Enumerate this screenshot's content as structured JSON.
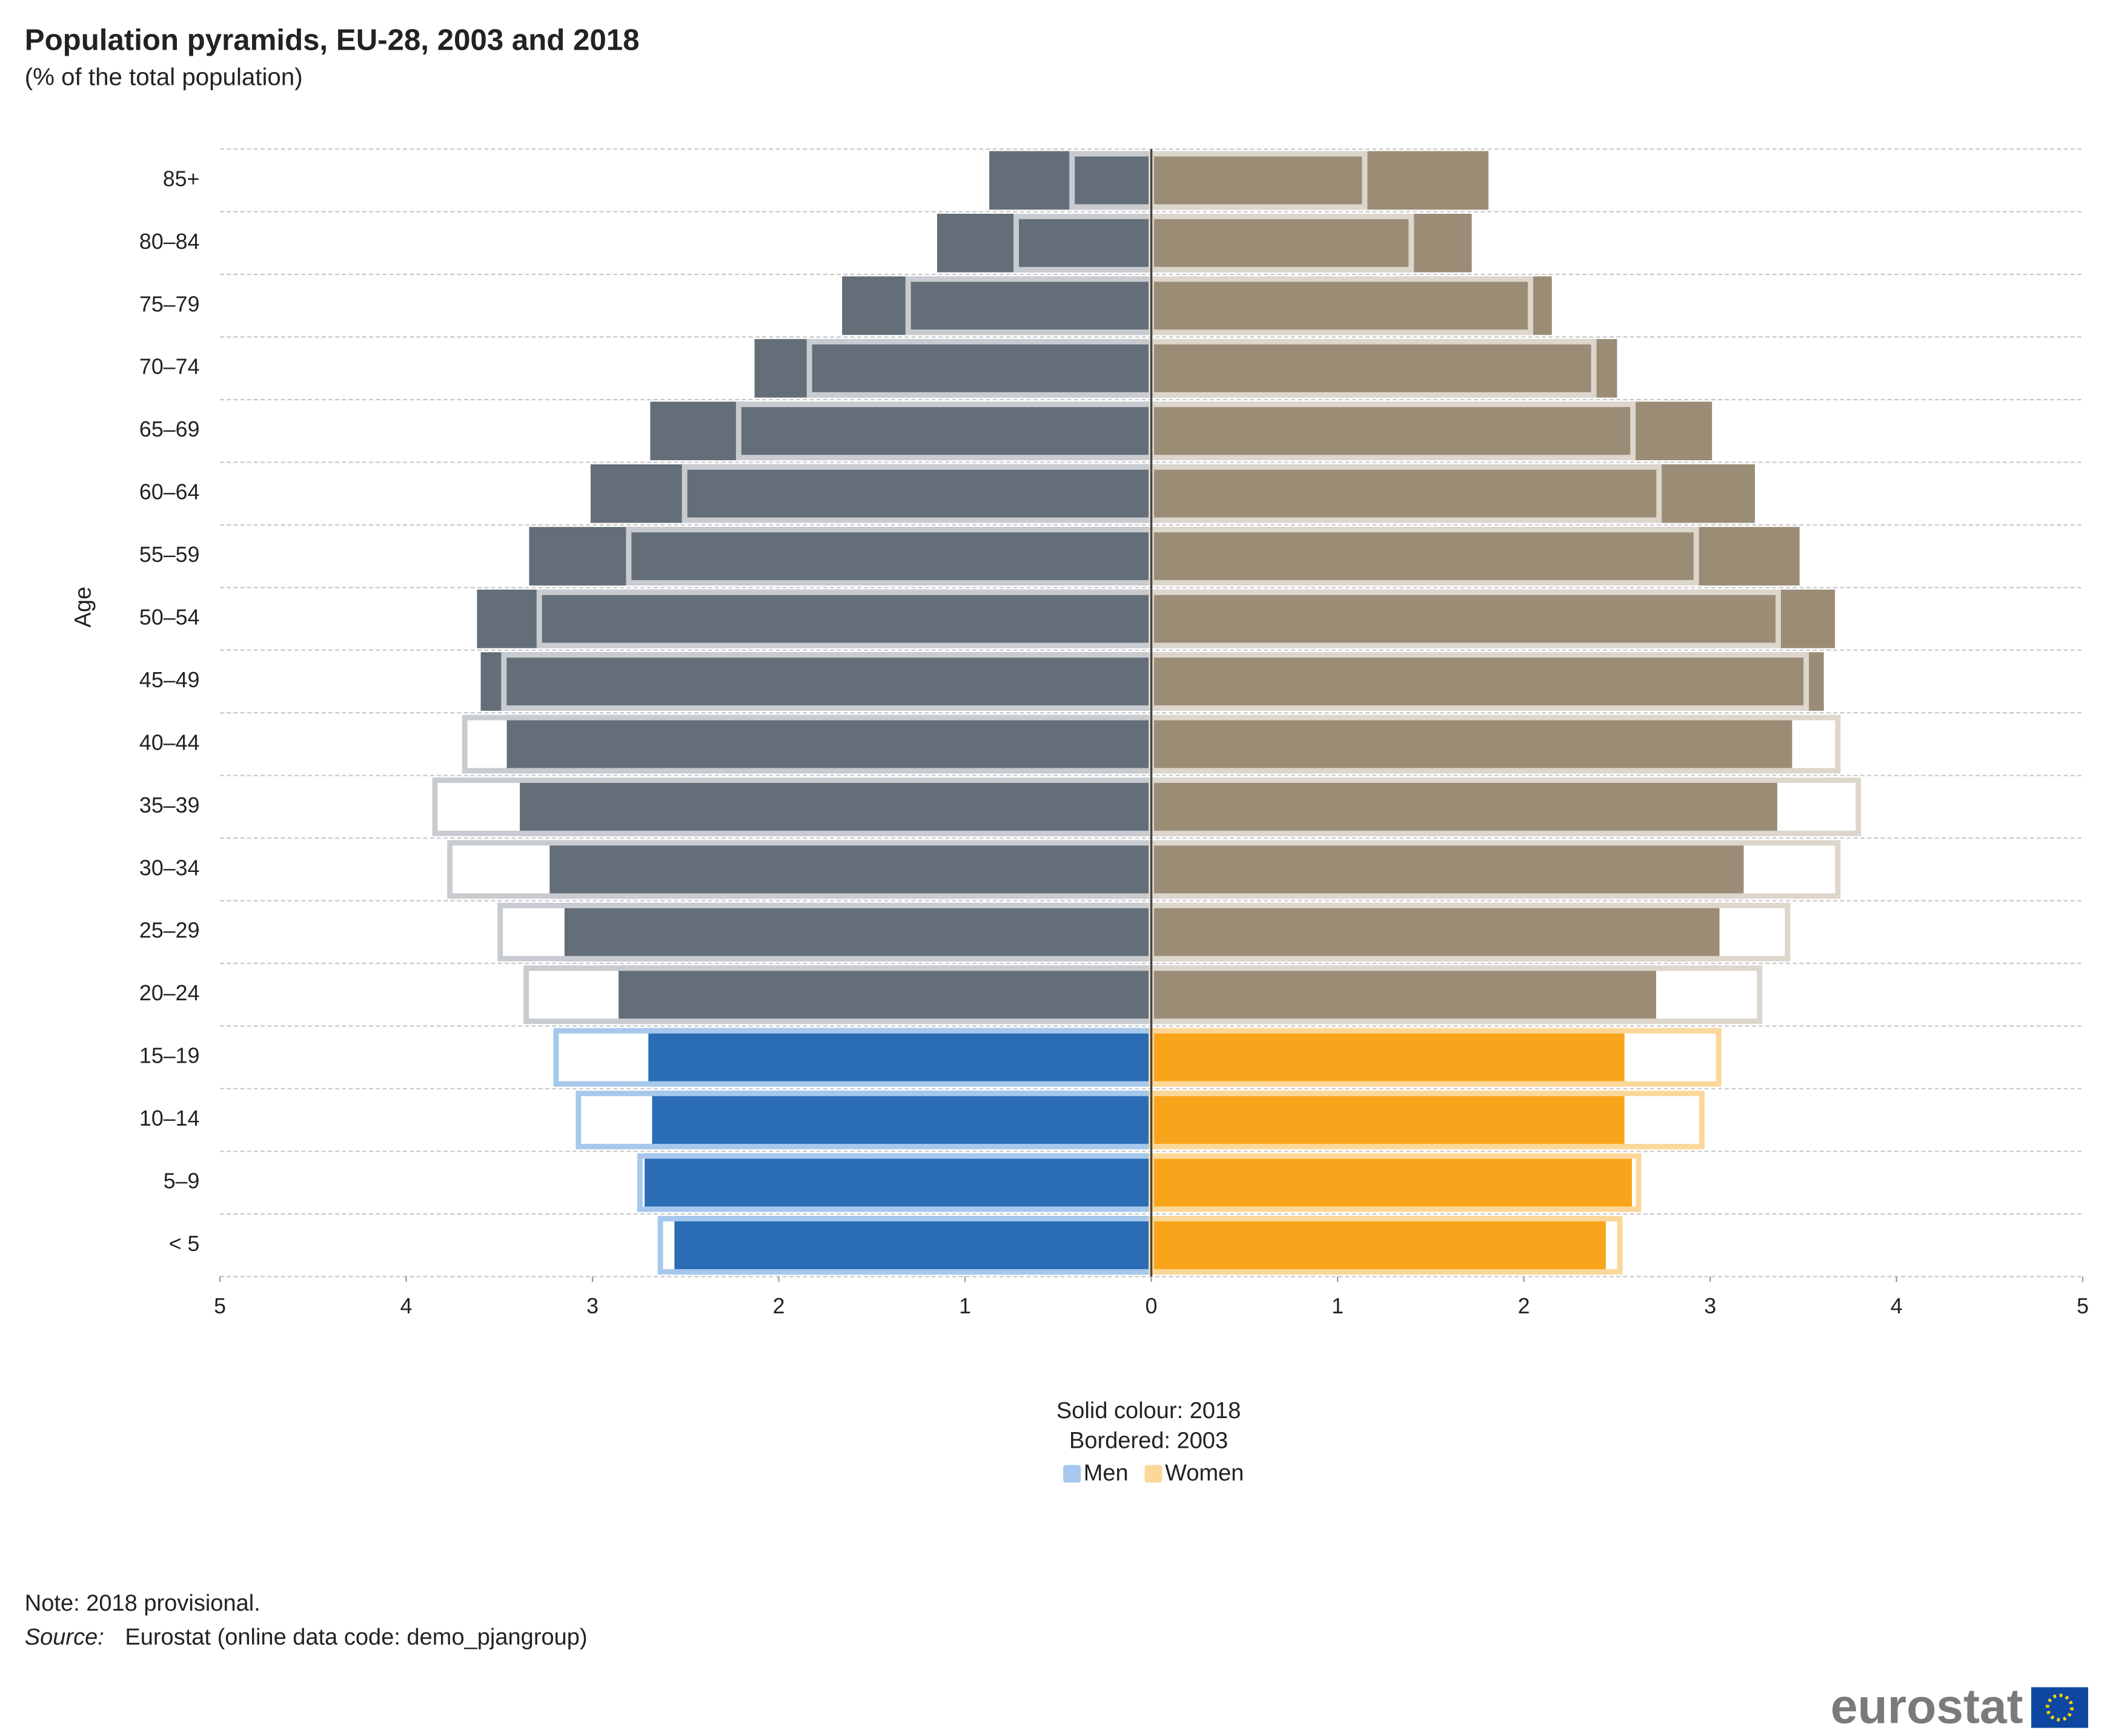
{
  "chart_data": {
    "type": "pyramid",
    "title": "Population pyramids, EU-28, 2003 and 2018",
    "subtitle": "(% of the total population)",
    "y_label": "Age",
    "legend_notes": [
      "Solid colour: 2018",
      "Bordered: 2003"
    ],
    "note": "Note: 2018 provisional.",
    "source_label": "Source:",
    "source": "Eurostat (online data code: demo_pjangroup)",
    "logo": "eurostat",
    "categories": [
      "85+",
      "80–84",
      "75–79",
      "70–74",
      "65–69",
      "60–64",
      "55–59",
      "50–54",
      "45–49",
      "40–44",
      "35–39",
      "30–34",
      "25–29",
      "20–24",
      "15–19",
      "10–14",
      "5–9",
      "< 5"
    ],
    "series": [
      {
        "name": "Men",
        "side": "left",
        "legend_color": "#a6c8ec",
        "colors": [
          "#636e78",
          "#636e78",
          "#636e78",
          "#636e78",
          "#636e78",
          "#636e78",
          "#636e78",
          "#636e78",
          "#636e78",
          "#636e78",
          "#636e78",
          "#636e78",
          "#636e78",
          "#636e78",
          "#2a6db5",
          "#2a6db5",
          "#2a6db5",
          "#2a6db5"
        ],
        "border_colors": [
          "#c8cbcf",
          "#c8cbcf",
          "#c8cbcf",
          "#c8cbcf",
          "#c8cbcf",
          "#c8cbcf",
          "#c8cbcf",
          "#c8cbcf",
          "#c8cbcf",
          "#c8cbcf",
          "#c8cbcf",
          "#c8cbcf",
          "#c8cbcf",
          "#c8cbcf",
          "#a6c8ec",
          "#a6c8ec",
          "#a6c8ec",
          "#a6c8ec"
        ],
        "values": [
          0.87,
          1.15,
          1.66,
          2.13,
          2.69,
          3.01,
          3.34,
          3.62,
          3.6,
          3.46,
          3.39,
          3.23,
          3.15,
          2.86,
          2.7,
          2.68,
          2.72,
          2.56
        ],
        "values_2003": [
          0.44,
          0.74,
          1.32,
          1.85,
          2.23,
          2.52,
          2.82,
          3.3,
          3.49,
          3.7,
          3.86,
          3.78,
          3.51,
          3.37,
          3.21,
          3.09,
          2.76,
          2.65
        ]
      },
      {
        "name": "Women",
        "side": "right",
        "legend_color": "#fbd89a",
        "colors": [
          "#9b8c76",
          "#9b8c76",
          "#9b8c76",
          "#9b8c76",
          "#9b8c76",
          "#9b8c76",
          "#9b8c76",
          "#9b8c76",
          "#9b8c76",
          "#9b8c76",
          "#9b8c76",
          "#9b8c76",
          "#9b8c76",
          "#9b8c76",
          "#f9a51c",
          "#f9a51c",
          "#f9a51c",
          "#f9a51c"
        ],
        "border_colors": [
          "#dcd6cc",
          "#dcd6cc",
          "#dcd6cc",
          "#dcd6cc",
          "#dcd6cc",
          "#dcd6cc",
          "#dcd6cc",
          "#dcd6cc",
          "#dcd6cc",
          "#dcd6cc",
          "#dcd6cc",
          "#dcd6cc",
          "#dcd6cc",
          "#dcd6cc",
          "#fbd89a",
          "#fbd89a",
          "#fbd89a",
          "#fbd89a"
        ],
        "values": [
          1.81,
          1.72,
          2.15,
          2.5,
          3.01,
          3.24,
          3.48,
          3.67,
          3.61,
          3.44,
          3.36,
          3.18,
          3.05,
          2.71,
          2.54,
          2.54,
          2.58,
          2.44
        ],
        "values_2003": [
          1.16,
          1.41,
          2.05,
          2.39,
          2.6,
          2.74,
          2.94,
          3.38,
          3.53,
          3.7,
          3.81,
          3.7,
          3.43,
          3.28,
          3.06,
          2.97,
          2.63,
          2.53
        ]
      }
    ],
    "xlim": [
      -5,
      5
    ],
    "xticks": [
      {
        "value": -5,
        "label": "5"
      },
      {
        "value": -4,
        "label": "4"
      },
      {
        "value": -3,
        "label": "3"
      },
      {
        "value": -2,
        "label": "2"
      },
      {
        "value": -1,
        "label": "1"
      },
      0,
      1,
      2,
      3,
      4,
      5
    ],
    "grid": true
  }
}
